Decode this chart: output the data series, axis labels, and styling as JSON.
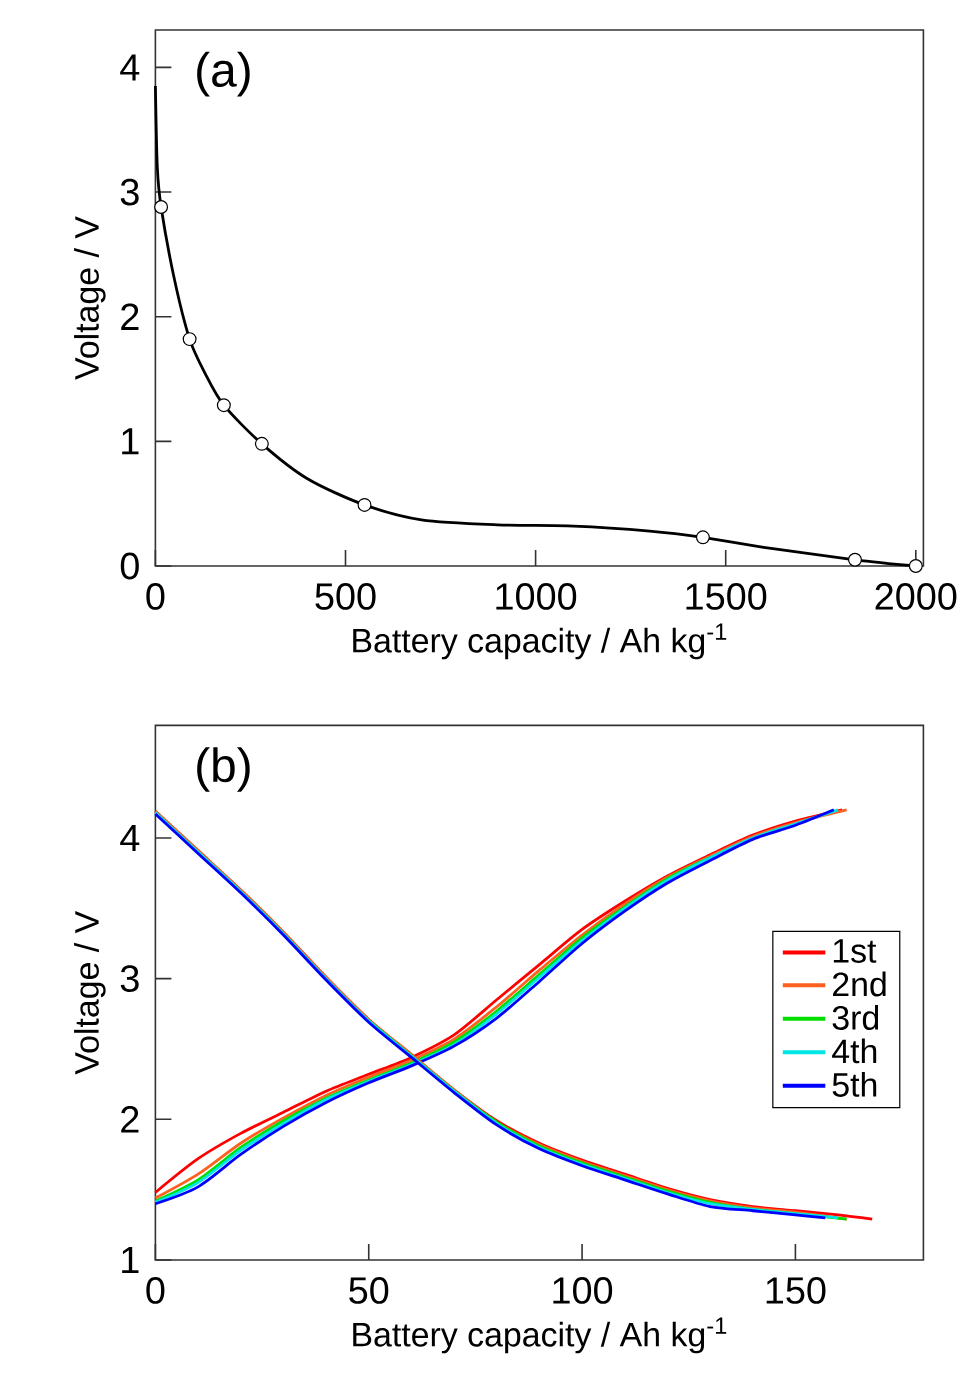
{
  "chart_data": [
    {
      "type": "line",
      "annotations": [
        "(a)"
      ],
      "xlabel": "Battery capacity / Ah kg$^{-1}$",
      "ylabel": "Voltage / V",
      "xlim": [
        0,
        2020
      ],
      "ylim": [
        0,
        4.3
      ],
      "xticks": [
        0,
        500,
        1000,
        1500,
        2000
      ],
      "yticks": [
        0,
        1,
        2,
        3,
        4
      ],
      "legend": false,
      "series": [
        {
          "type": "line",
          "marker": "none",
          "color": "#000000",
          "x": [
            0,
            5,
            15,
            50,
            90,
            130,
            180,
            280,
            400,
            550,
            700,
            900,
            1100,
            1300,
            1440,
            1600,
            1840,
            2000
          ],
          "values": [
            3.85,
            3.2,
            2.88,
            2.3,
            1.82,
            1.55,
            1.29,
            0.98,
            0.7,
            0.49,
            0.37,
            0.33,
            0.32,
            0.28,
            0.23,
            0.15,
            0.05,
            0.0
          ]
        },
        {
          "type": "scatter",
          "marker": "circle",
          "color": "#000000",
          "x": [
            15,
            90,
            180,
            280,
            550,
            1440,
            1840,
            2000
          ],
          "values": [
            2.88,
            1.82,
            1.29,
            0.98,
            0.49,
            0.23,
            0.05,
            0.0
          ]
        }
      ]
    },
    {
      "type": "line",
      "annotations": [
        "(b)"
      ],
      "xlabel": "Battery capacity / Ah kg$^{-1}$",
      "ylabel": "Voltage / V",
      "xlim": [
        0,
        180
      ],
      "ylim": [
        1,
        4.8
      ],
      "xticks": [
        0,
        50,
        100,
        150
      ],
      "yticks": [
        1,
        2,
        3,
        4
      ],
      "legend": "right",
      "series": [
        {
          "name": "1st",
          "color": "#ff0000",
          "x": [
            0,
            10,
            20,
            30,
            40,
            50,
            60,
            70,
            80,
            90,
            100,
            110,
            120,
            130,
            140,
            150,
            161
          ],
          "values": [
            1.48,
            1.72,
            1.9,
            2.05,
            2.2,
            2.32,
            2.44,
            2.6,
            2.85,
            3.1,
            3.35,
            3.55,
            3.73,
            3.88,
            4.02,
            4.12,
            4.2
          ]
        },
        {
          "name": "2nd",
          "color": "#ff6020",
          "x": [
            0,
            10,
            20,
            30,
            40,
            50,
            60,
            70,
            80,
            90,
            100,
            110,
            120,
            130,
            140,
            150,
            162
          ],
          "values": [
            1.44,
            1.61,
            1.83,
            2.01,
            2.17,
            2.3,
            2.42,
            2.57,
            2.8,
            3.06,
            3.31,
            3.53,
            3.72,
            3.87,
            4.01,
            4.11,
            4.2
          ]
        },
        {
          "name": "3rd",
          "color": "#00dd00",
          "x": [
            0,
            10,
            20,
            30,
            40,
            50,
            60,
            70,
            80,
            90,
            100,
            110,
            120,
            130
          ],
          "values": [
            1.42,
            1.57,
            1.8,
            1.99,
            2.15,
            2.28,
            2.4,
            2.55,
            2.77,
            3.03,
            3.29,
            3.51,
            3.71,
            3.86
          ]
        },
        {
          "name": "4th",
          "color": "#00e5e5",
          "x": [
            0,
            10,
            20,
            30,
            40,
            50,
            60,
            70,
            80,
            90,
            100,
            110,
            120,
            130,
            140,
            150,
            160
          ],
          "values": [
            1.41,
            1.55,
            1.78,
            1.97,
            2.14,
            2.27,
            2.39,
            2.53,
            2.75,
            3.01,
            3.27,
            3.5,
            3.7,
            3.86,
            4.0,
            4.1,
            4.2
          ]
        },
        {
          "name": "5th",
          "color": "#0000ff",
          "x": [
            0,
            10,
            20,
            30,
            40,
            50,
            60,
            70,
            80,
            90,
            100,
            110,
            120,
            130,
            140,
            150,
            159
          ],
          "values": [
            1.4,
            1.52,
            1.75,
            1.95,
            2.12,
            2.26,
            2.38,
            2.52,
            2.72,
            2.98,
            3.25,
            3.48,
            3.68,
            3.84,
            3.99,
            4.09,
            4.2
          ]
        },
        {
          "color": "#ff0000",
          "x": [
            0,
            10,
            20,
            30,
            40,
            50,
            60,
            70,
            80,
            90,
            100,
            110,
            120,
            130,
            140,
            150,
            160,
            168
          ],
          "values": [
            4.19,
            3.91,
            3.63,
            3.33,
            3.01,
            2.71,
            2.46,
            2.21,
            1.99,
            1.83,
            1.71,
            1.61,
            1.51,
            1.43,
            1.38,
            1.35,
            1.32,
            1.29
          ]
        },
        {
          "color": "#ff6020",
          "x": [
            0,
            10,
            20,
            30,
            40,
            50,
            60,
            70,
            80,
            90,
            100,
            110,
            120,
            130,
            140,
            150,
            162
          ],
          "values": [
            4.19,
            3.91,
            3.63,
            3.33,
            3.01,
            2.71,
            2.46,
            2.21,
            1.98,
            1.82,
            1.7,
            1.6,
            1.5,
            1.42,
            1.37,
            1.34,
            1.29
          ]
        },
        {
          "color": "#00dd00",
          "x": [
            50,
            60,
            70,
            80,
            90,
            100,
            110,
            120,
            130,
            140,
            150,
            162
          ],
          "values": [
            2.7,
            2.45,
            2.2,
            1.98,
            1.81,
            1.69,
            1.59,
            1.49,
            1.41,
            1.36,
            1.33,
            1.29
          ]
        },
        {
          "color": "#00e5e5",
          "x": [
            0,
            10,
            20,
            30,
            40,
            50,
            60,
            70,
            80,
            90,
            100,
            110,
            120,
            130,
            140,
            150,
            160
          ],
          "values": [
            4.18,
            3.9,
            3.62,
            3.32,
            3.0,
            2.7,
            2.45,
            2.2,
            1.97,
            1.8,
            1.68,
            1.58,
            1.48,
            1.4,
            1.36,
            1.33,
            1.3
          ]
        },
        {
          "color": "#0000ff",
          "x": [
            0,
            10,
            20,
            30,
            40,
            50,
            60,
            70,
            80,
            90,
            100,
            110,
            120,
            130,
            140,
            150,
            157
          ],
          "values": [
            4.17,
            3.89,
            3.61,
            3.31,
            2.99,
            2.69,
            2.44,
            2.19,
            1.96,
            1.79,
            1.67,
            1.57,
            1.47,
            1.38,
            1.35,
            1.32,
            1.3
          ]
        }
      ]
    }
  ]
}
